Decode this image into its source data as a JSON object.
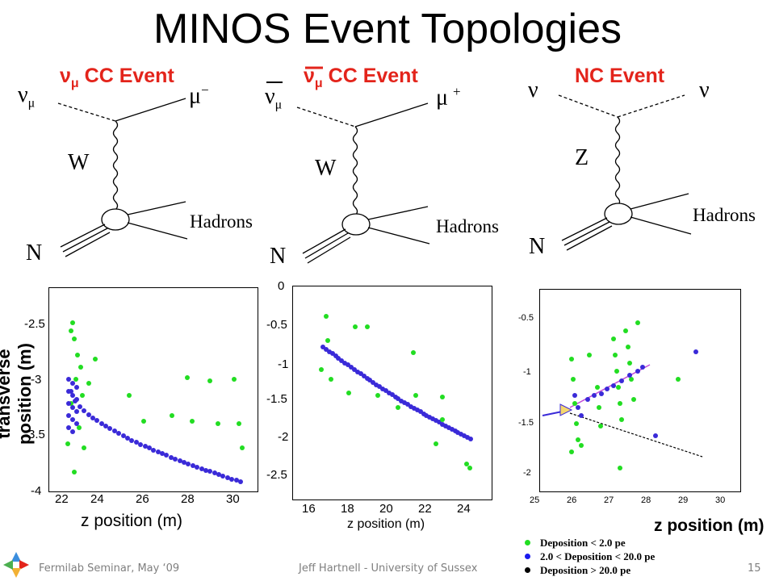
{
  "title": "MINOS Event Topologies",
  "events": [
    {
      "label_main": "ν",
      "label_sub": "μ",
      "label_rest": " CC Event",
      "in_particle": "ν",
      "in_sub": "μ",
      "out_particle": "μ",
      "out_sup": "−",
      "boson": "W",
      "target": "N",
      "products": "Hadrons"
    },
    {
      "label_main": "ν",
      "label_sub": "μ",
      "label_rest": " CC Event",
      "in_particle": "ν",
      "in_sub": "μ",
      "out_particle": "μ",
      "out_sup": "+",
      "boson": "W",
      "target": "N",
      "products": "Hadrons"
    },
    {
      "label_main": "NC Event",
      "in_particle": "ν",
      "out_particle": "ν",
      "boson": "Z",
      "target": "N",
      "products": "Hadrons"
    }
  ],
  "plots": [
    {
      "ylabel": "transverse position (m)",
      "xlabel": "z position (m)",
      "yticks": [
        "-2.5",
        "-3",
        "-3.5",
        "-4"
      ],
      "xticks": [
        "22",
        "24",
        "26",
        "28",
        "30"
      ]
    },
    {
      "ylabel": "",
      "xlabel": "z position (m)",
      "yticks": [
        "0",
        "-0.5",
        "-1",
        "-1.5",
        "-2",
        "-2.5"
      ],
      "xticks": [
        "16",
        "18",
        "20",
        "22",
        "24"
      ]
    },
    {
      "ylabel": "",
      "xlabel": "z position (m)",
      "yticks": [
        "-0.5",
        "-1",
        "-1.5",
        "-2"
      ],
      "xticks": [
        "25",
        "26",
        "27",
        "28",
        "29",
        "30"
      ]
    }
  ],
  "legend": [
    {
      "label": "Deposition < 2.0 pe",
      "color": "#22dd22"
    },
    {
      "label": "2.0 < Deposition < 20.0 pe",
      "color": "#1a1aee"
    },
    {
      "label": "Deposition > 20.0 pe",
      "color": "#000000"
    }
  ],
  "footer": {
    "left": "Fermilab Seminar, May ‘09",
    "center": "Jeff Hartnell - University of Sussex",
    "page": "15"
  },
  "colors": {
    "accent": "#e3241b",
    "green": "#22dd22",
    "blue": "#3a2ad8",
    "purple": "#c24bd8"
  }
}
